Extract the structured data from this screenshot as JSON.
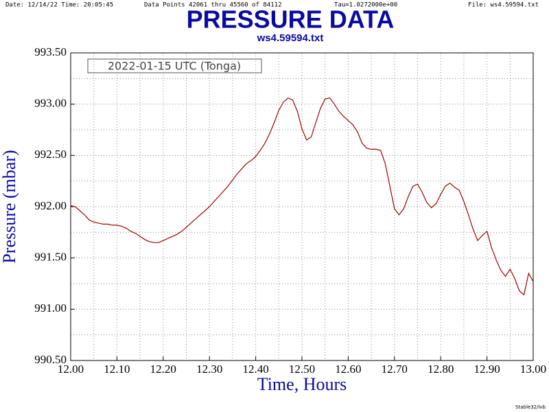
{
  "chart_data": {
    "type": "line",
    "header": [
      "Date: 12/14/22  Time: 20:05:45",
      "Data Points 42061 thru 45560 of 84112",
      "Tau=1.0272000e+00",
      "File: ws4.59594.txt"
    ],
    "title": "PRESSURE DATA",
    "subtitle": "ws4.59594.txt",
    "annotation": "2022-01-15 UTC (Tonga)",
    "footer": "Stable32/lvb",
    "xlabel": "Time, Hours",
    "ylabel": "Pressure (mbar)",
    "xlim": [
      12.0,
      13.0
    ],
    "ylim": [
      990.5,
      993.5
    ],
    "xticks": [
      {
        "value": 12.0,
        "label": "12.00"
      },
      {
        "value": 12.1,
        "label": "12.10"
      },
      {
        "value": 12.2,
        "label": "12.20"
      },
      {
        "value": 12.3,
        "label": "12.30"
      },
      {
        "value": 12.4,
        "label": "12.40"
      },
      {
        "value": 12.5,
        "label": "12.50"
      },
      {
        "value": 12.6,
        "label": "12.60"
      },
      {
        "value": 12.7,
        "label": "12.70"
      },
      {
        "value": 12.8,
        "label": "12.80"
      },
      {
        "value": 12.9,
        "label": "12.90"
      },
      {
        "value": 13.0,
        "label": "13.00"
      }
    ],
    "yticks": [
      {
        "value": 990.5,
        "label": "990.50"
      },
      {
        "value": 991.0,
        "label": "991.00"
      },
      {
        "value": 991.5,
        "label": "991.50"
      },
      {
        "value": 992.0,
        "label": "992.00"
      },
      {
        "value": 992.5,
        "label": "992.50"
      },
      {
        "value": 993.0,
        "label": "993.00"
      },
      {
        "value": 993.5,
        "label": "993.50"
      }
    ],
    "xminorticks": [
      12.05,
      12.15,
      12.25,
      12.35,
      12.45,
      12.55,
      12.65,
      12.75,
      12.85,
      12.95
    ],
    "yminorticks": [
      990.75,
      991.25,
      991.75,
      992.25,
      992.75,
      993.25
    ],
    "grid": true,
    "series": [
      {
        "name": "Pressure",
        "color": "#a00000",
        "x": [
          12.0,
          12.01,
          12.02,
          12.03,
          12.04,
          12.05,
          12.06,
          12.07,
          12.08,
          12.09,
          12.1,
          12.11,
          12.12,
          12.13,
          12.14,
          12.15,
          12.16,
          12.17,
          12.18,
          12.19,
          12.2,
          12.21,
          12.22,
          12.23,
          12.24,
          12.25,
          12.26,
          12.27,
          12.28,
          12.29,
          12.3,
          12.31,
          12.32,
          12.33,
          12.34,
          12.35,
          12.36,
          12.37,
          12.38,
          12.39,
          12.4,
          12.41,
          12.42,
          12.43,
          12.44,
          12.45,
          12.46,
          12.47,
          12.48,
          12.49,
          12.5,
          12.51,
          12.52,
          12.53,
          12.54,
          12.55,
          12.56,
          12.57,
          12.58,
          12.59,
          12.6,
          12.61,
          12.62,
          12.63,
          12.64,
          12.65,
          12.66,
          12.67,
          12.68,
          12.69,
          12.7,
          12.71,
          12.72,
          12.73,
          12.74,
          12.75,
          12.76,
          12.77,
          12.78,
          12.79,
          12.8,
          12.81,
          12.82,
          12.83,
          12.84,
          12.85,
          12.86,
          12.87,
          12.88,
          12.89,
          12.9,
          12.91,
          12.92,
          12.93,
          12.94,
          12.95,
          12.96,
          12.97,
          12.98,
          12.99,
          13.0
        ],
        "values": [
          992.01,
          992.0,
          991.96,
          991.92,
          991.87,
          991.85,
          991.84,
          991.83,
          991.83,
          991.82,
          991.82,
          991.81,
          991.79,
          991.76,
          991.74,
          991.71,
          991.68,
          991.66,
          991.65,
          991.65,
          991.67,
          991.69,
          991.71,
          991.73,
          991.76,
          991.8,
          991.84,
          991.88,
          991.92,
          991.96,
          992.0,
          992.05,
          992.1,
          992.15,
          992.2,
          992.26,
          992.32,
          992.37,
          992.42,
          992.45,
          992.49,
          992.55,
          992.62,
          992.71,
          992.82,
          992.94,
          993.02,
          993.06,
          993.04,
          992.93,
          992.76,
          992.65,
          992.68,
          992.82,
          992.96,
          993.05,
          993.06,
          993.0,
          992.93,
          992.88,
          992.84,
          992.8,
          992.73,
          992.62,
          992.57,
          992.56,
          992.56,
          992.55,
          992.42,
          992.2,
          991.98,
          991.92,
          991.98,
          992.1,
          992.2,
          992.22,
          992.14,
          992.04,
          991.99,
          992.03,
          992.12,
          992.2,
          992.23,
          992.19,
          992.16,
          992.05,
          991.92,
          991.78,
          991.67,
          991.72,
          991.76,
          991.6,
          991.48,
          991.38,
          991.32,
          991.39,
          991.3,
          991.18,
          991.14,
          991.35,
          991.27
        ]
      }
    ]
  }
}
